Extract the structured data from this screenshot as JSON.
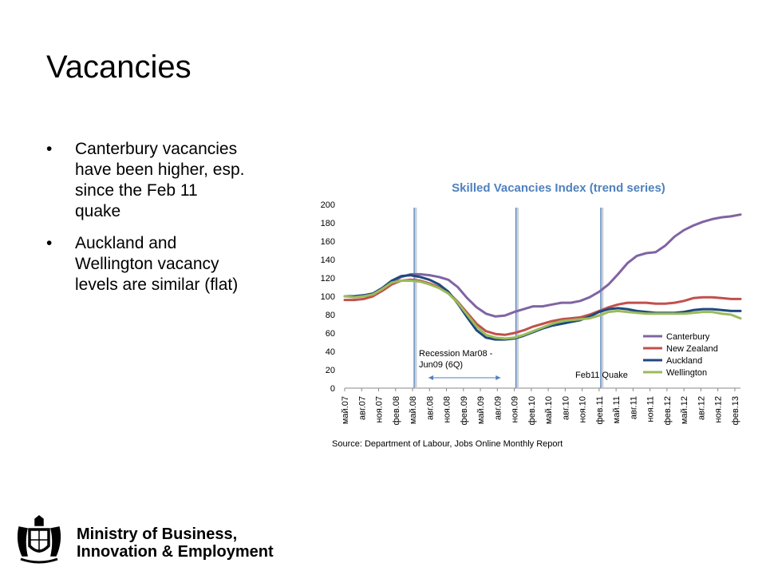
{
  "slide": {
    "title": "Vacancies",
    "bullets": [
      "Canterbury vacancies have been higher, esp. since the Feb 11 quake",
      "Auckland and Wellington vacancy levels are similar (flat)"
    ]
  },
  "logo": {
    "line1": "Ministry of Business,",
    "line2": "Innovation & Employment"
  },
  "chart_data": {
    "type": "line",
    "title": "Skilled Vacancies Index (trend series)",
    "source": "Source: Department of Labour, Jobs Online Monthly Report",
    "ylim": [
      0,
      200
    ],
    "yticks": [
      0,
      20,
      40,
      60,
      80,
      100,
      120,
      140,
      160,
      180,
      200
    ],
    "x_tick_labels": [
      "май.07",
      "авг.07",
      "ноя.07",
      "фев.08",
      "май.08",
      "авг.08",
      "ноя.08",
      "фев.09",
      "май.09",
      "авг.09",
      "ноя.09",
      "фев.10",
      "май.10",
      "авг.10",
      "ноя.10",
      "фев.11",
      "май.11",
      "авг.11",
      "ноя.11",
      "фев.12",
      "май.12",
      "авг.12",
      "ноя.12",
      "фев.13"
    ],
    "legend_position": "right",
    "vlines": [
      {
        "at": "май.08",
        "label": ""
      },
      {
        "at": "ноя.09",
        "label": ""
      },
      {
        "at": "фев.11",
        "label": "Feb11 Quake"
      }
    ],
    "annotations": [
      {
        "text": "Recession Mar08 -",
        "text2": "Jun09 (6Q)",
        "span": [
          "май.08",
          "авг.09"
        ]
      }
    ],
    "series": [
      {
        "name": "Canterbury",
        "color": "#8064a2",
        "values": [
          100,
          100,
          101,
          103,
          108,
          115,
          121,
          124,
          124,
          123,
          121,
          118,
          110,
          98,
          88,
          81,
          78,
          79,
          83,
          86,
          89,
          89,
          91,
          93,
          93,
          95,
          99,
          105,
          113,
          124,
          136,
          144,
          147,
          148,
          155,
          165,
          172,
          177,
          181,
          184,
          186,
          187,
          189
        ]
      },
      {
        "name": "New Zealand",
        "color": "#c0504d",
        "values": [
          96,
          96,
          97,
          100,
          106,
          113,
          117,
          118,
          117,
          114,
          110,
          104,
          94,
          82,
          70,
          62,
          59,
          58,
          60,
          63,
          67,
          70,
          73,
          75,
          76,
          77,
          80,
          84,
          88,
          91,
          93,
          93,
          93,
          92,
          92,
          93,
          95,
          98,
          99,
          99,
          98,
          97,
          97
        ]
      },
      {
        "name": "Auckland",
        "color": "#1f497d",
        "values": [
          100,
          100,
          101,
          103,
          109,
          117,
          122,
          123,
          121,
          118,
          113,
          105,
          92,
          77,
          63,
          55,
          53,
          53,
          54,
          57,
          61,
          65,
          68,
          70,
          72,
          74,
          78,
          83,
          86,
          87,
          86,
          84,
          83,
          82,
          82,
          82,
          83,
          85,
          86,
          86,
          85,
          84,
          84
        ]
      },
      {
        "name": "Wellington",
        "color": "#9bbb59",
        "values": [
          100,
          99,
          100,
          102,
          108,
          115,
          117,
          117,
          116,
          113,
          109,
          103,
          93,
          80,
          67,
          58,
          55,
          54,
          55,
          58,
          62,
          66,
          70,
          73,
          74,
          75,
          76,
          79,
          83,
          84,
          83,
          82,
          81,
          81,
          81,
          81,
          81,
          82,
          83,
          83,
          81,
          80,
          76
        ]
      }
    ]
  }
}
